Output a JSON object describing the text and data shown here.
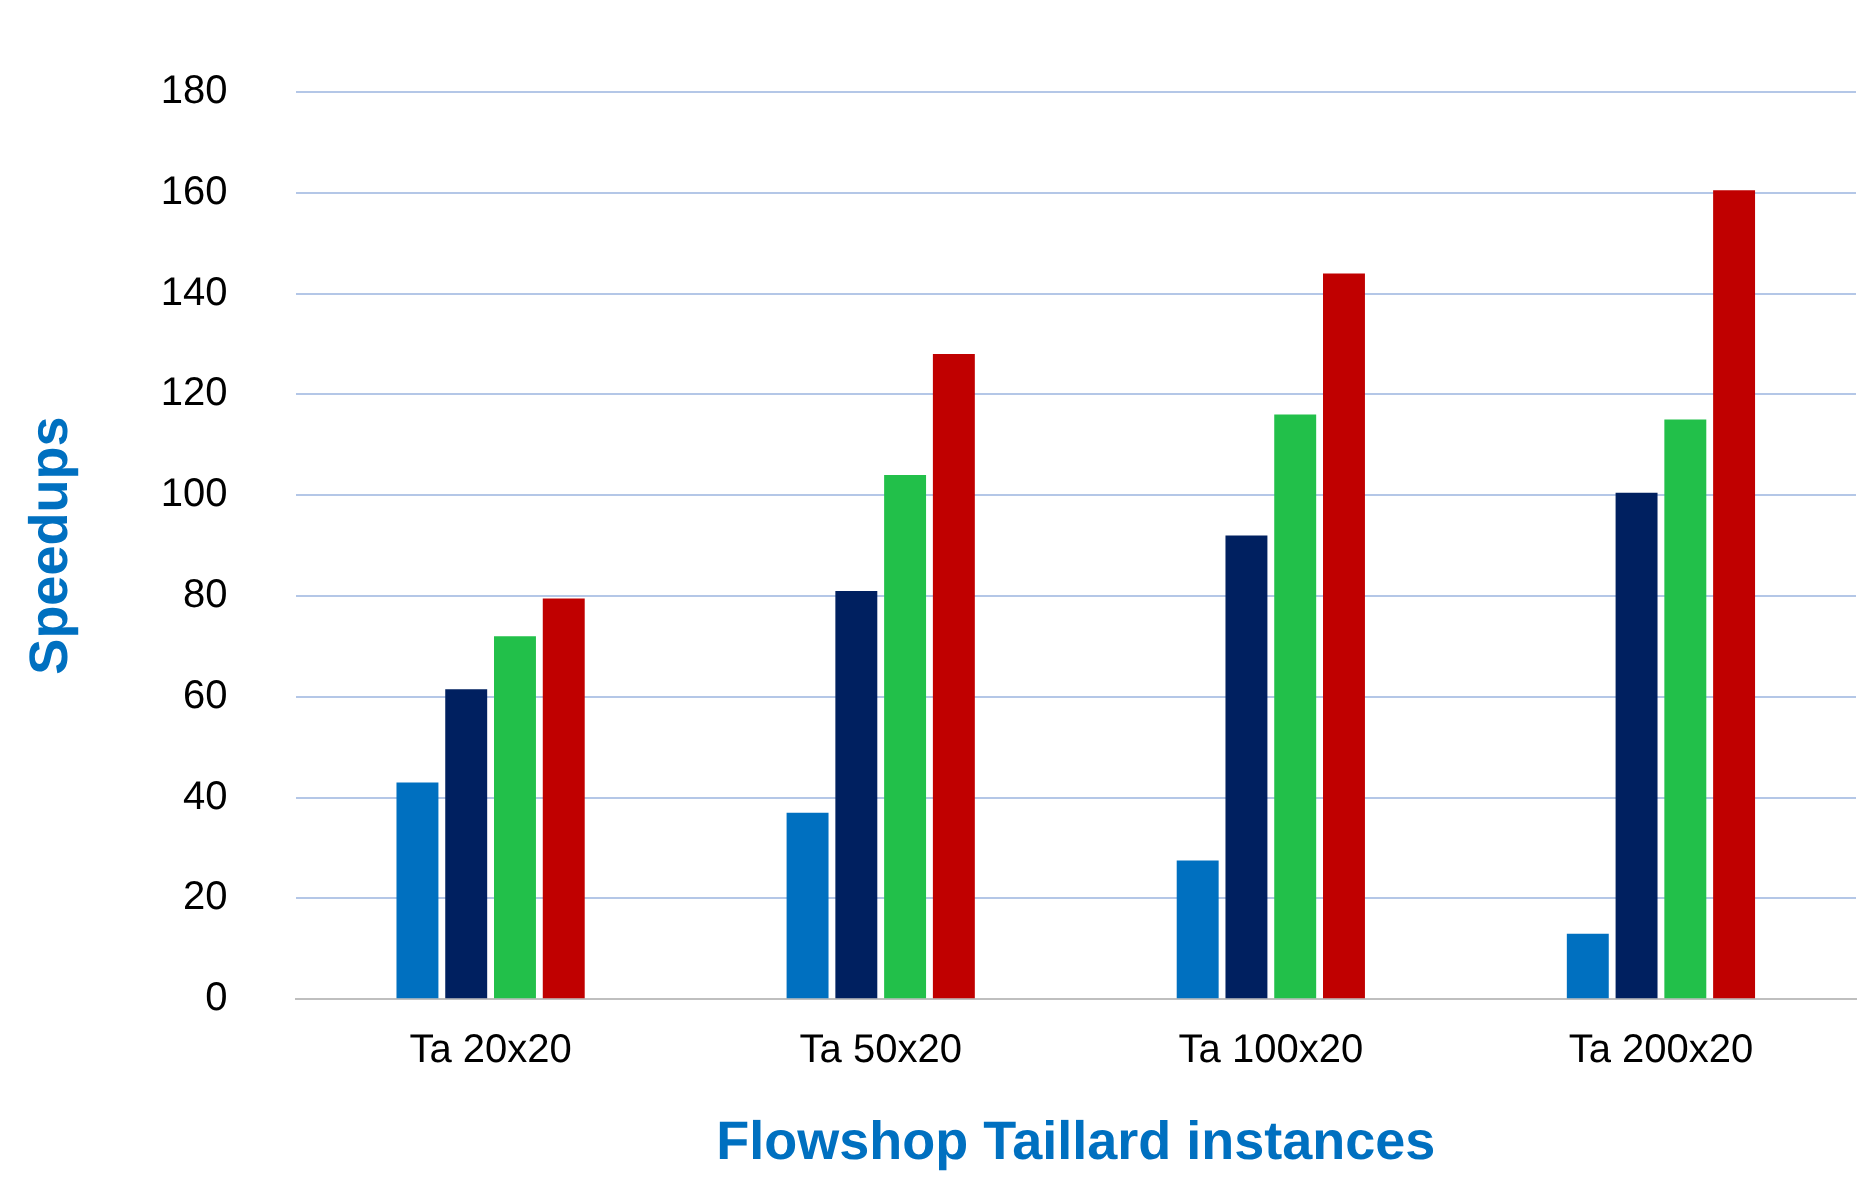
{
  "chart_data": {
    "type": "bar",
    "xlabel": "Flowshop Taillard instances",
    "ylabel": "Speedups",
    "categories": [
      "Ta 20x20",
      "Ta 50x20",
      "Ta 100x20",
      "Ta 200x20"
    ],
    "series": [
      {
        "color": "#0070c0",
        "values": [
          43,
          37,
          27.5,
          13
        ]
      },
      {
        "color": "#002060",
        "values": [
          61.5,
          81,
          92,
          100.5
        ]
      },
      {
        "color": "#22c04a",
        "values": [
          72,
          104,
          116,
          115
        ]
      },
      {
        "color": "#c00000",
        "values": [
          79.5,
          128,
          144,
          160.5
        ]
      }
    ],
    "ylim": [
      0,
      180
    ],
    "yticks": [
      0,
      20,
      40,
      60,
      80,
      100,
      120,
      140,
      160,
      180
    ],
    "grid": "y",
    "legend": false
  }
}
